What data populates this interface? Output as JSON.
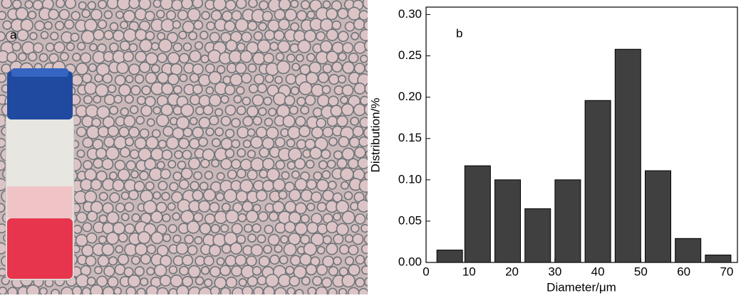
{
  "photo": {
    "label": "a"
  },
  "chart_data": {
    "type": "bar",
    "annotation": "b",
    "x_label": "Diameter/μm",
    "y_label": "Distribution/%",
    "x": [
      5.5,
      12,
      19,
      26,
      33,
      40,
      47,
      54,
      61,
      68
    ],
    "values": [
      0.015,
      0.117,
      0.1,
      0.065,
      0.1,
      0.196,
      0.258,
      0.111,
      0.029,
      0.009
    ],
    "color": "#404040",
    "xlim": [
      0,
      72.5
    ],
    "xticks": [
      0,
      10,
      20,
      30,
      40,
      50,
      60,
      70
    ],
    "ylim": [
      0,
      0.309
    ],
    "yticks": [
      {
        "value": 0,
        "label": "0.00"
      },
      {
        "value": 0.05,
        "label": "0.05"
      },
      {
        "value": 0.1,
        "label": "0.10"
      },
      {
        "value": 0.15,
        "label": "0.15"
      },
      {
        "value": 0.2,
        "label": "0.20"
      },
      {
        "value": 0.25,
        "label": "0.25"
      },
      {
        "value": 0.3,
        "label": "0.30"
      }
    ]
  }
}
